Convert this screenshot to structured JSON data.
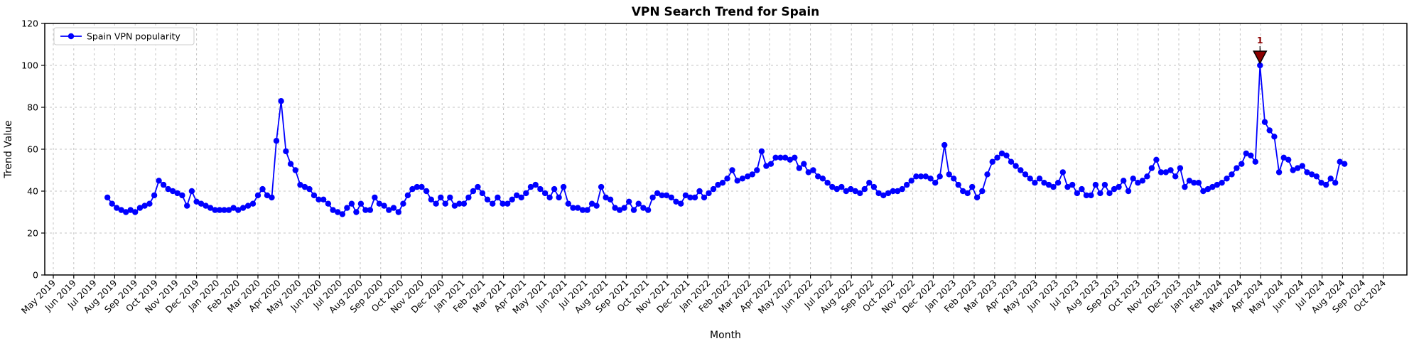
{
  "figure": {
    "title": "VPN Search Trend for Spain",
    "xlabel": "Month",
    "ylabel": "Trend Value",
    "legend_label": "Spain VPN popularity",
    "annotation_label": "1"
  },
  "colors": {
    "line": "#0000ff",
    "marker": "#0000ff",
    "annotation": "#8b0000",
    "annotation_edge": "#000000",
    "grid": "#c3c3c3",
    "axis": "#000000",
    "background": "#ffffff",
    "legend_border": "#cccccc"
  },
  "chart_data": {
    "type": "line",
    "title": "VPN Search Trend for Spain",
    "xlabel": "Month",
    "ylabel": "Trend Value",
    "grid": true,
    "legend_position": "upper-left",
    "ylim": [
      0,
      120
    ],
    "yticks": [
      0,
      20,
      40,
      60,
      80,
      100,
      120
    ],
    "xticklabels": [
      "May 2019",
      "Jun 2019",
      "Jul 2019",
      "Aug 2019",
      "Sep 2019",
      "Oct 2019",
      "Nov 2019",
      "Dec 2019",
      "Jan 2020",
      "Feb 2020",
      "Mar 2020",
      "Apr 2020",
      "May 2020",
      "Jun 2020",
      "Jul 2020",
      "Aug 2020",
      "Sep 2020",
      "Oct 2020",
      "Nov 2020",
      "Dec 2020",
      "Jan 2021",
      "Feb 2021",
      "Mar 2021",
      "Apr 2021",
      "May 2021",
      "Jun 2021",
      "Jul 2021",
      "Aug 2021",
      "Sep 2021",
      "Oct 2021",
      "Nov 2021",
      "Dec 2021",
      "Jan 2022",
      "Feb 2022",
      "Mar 2022",
      "Apr 2022",
      "May 2022",
      "Jun 2022",
      "Jul 2022",
      "Aug 2022",
      "Sep 2022",
      "Oct 2022",
      "Nov 2022",
      "Dec 2022",
      "Jan 2023",
      "Feb 2023",
      "Mar 2023",
      "Apr 2023",
      "May 2023",
      "Jun 2023",
      "Jul 2023",
      "Aug 2023",
      "Sep 2023",
      "Oct 2023",
      "Nov 2023",
      "Dec 2023",
      "Jan 2024",
      "Feb 2024",
      "Mar 2024",
      "Apr 2024",
      "May 2024",
      "Jun 2024",
      "Jul 2024",
      "Aug 2024",
      "Sep 2024",
      "Oct 2024"
    ],
    "series": [
      {
        "name": "Spain VPN popularity",
        "color": "#0000ff",
        "marker": "circle",
        "interval": "weekly",
        "start_date": "2019-07-21",
        "values": [
          37,
          34,
          32,
          31,
          30,
          31,
          30,
          32,
          33,
          34,
          38,
          45,
          43,
          41,
          40,
          39,
          38,
          33,
          40,
          35,
          34,
          33,
          32,
          31,
          31,
          31,
          31,
          32,
          31,
          32,
          33,
          34,
          38,
          41,
          38,
          37,
          64,
          83,
          59,
          53,
          50,
          43,
          42,
          41,
          38,
          36,
          36,
          34,
          31,
          30,
          29,
          32,
          34,
          30,
          34,
          31,
          31,
          37,
          34,
          33,
          31,
          32,
          30,
          34,
          38,
          41,
          42,
          42,
          40,
          36,
          34,
          37,
          34,
          37,
          33,
          34,
          34,
          37,
          40,
          42,
          39,
          36,
          34,
          37,
          34,
          34,
          36,
          38,
          37,
          39,
          42,
          43,
          41,
          39,
          37,
          41,
          37,
          42,
          34,
          32,
          32,
          31,
          31,
          34,
          33,
          42,
          37,
          36,
          32,
          31,
          32,
          35,
          31,
          34,
          32,
          31,
          37,
          39,
          38,
          38,
          37,
          35,
          34,
          38,
          37,
          37,
          40,
          37,
          39,
          41,
          43,
          44,
          46,
          50,
          45,
          46,
          47,
          48,
          50,
          59,
          52,
          53,
          56,
          56,
          56,
          55,
          56,
          51,
          53,
          49,
          50,
          47,
          46,
          44,
          42,
          41,
          42,
          40,
          41,
          40,
          39,
          41,
          44,
          42,
          39,
          38,
          39,
          40,
          40,
          41,
          43,
          45,
          47,
          47,
          47,
          46,
          44,
          47,
          62,
          48,
          46,
          43,
          40,
          39,
          42,
          37,
          40,
          48,
          54,
          56,
          58,
          57,
          54,
          52,
          50,
          48,
          46,
          44,
          46,
          44,
          43,
          42,
          44,
          49,
          42,
          43,
          39,
          41,
          38,
          38,
          43,
          39,
          43,
          39,
          41,
          42,
          45,
          40,
          46,
          44,
          45,
          47,
          51,
          55,
          49,
          49,
          50,
          47,
          51,
          42,
          45,
          44,
          44,
          40,
          41,
          42,
          43,
          44,
          46,
          48,
          51,
          53,
          58,
          57,
          54,
          100,
          73,
          69,
          66,
          49,
          56,
          55,
          50,
          51,
          52,
          49,
          48,
          47,
          44,
          43,
          46,
          44,
          54,
          53
        ]
      }
    ],
    "annotations": [
      {
        "label": "1",
        "at": "max",
        "x": "2024-03-31",
        "y": 100,
        "marker": "triangle-down",
        "color": "#8b0000"
      }
    ]
  }
}
